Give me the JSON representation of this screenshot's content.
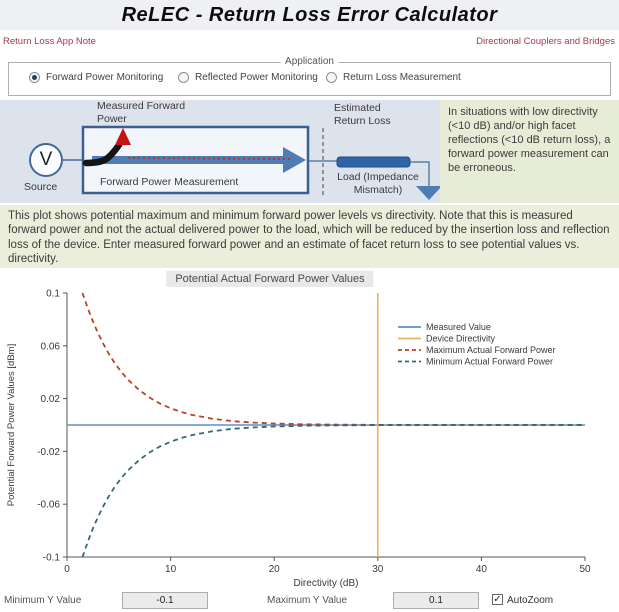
{
  "window": {
    "title": "ReLEC - Return Loss Error Calculator"
  },
  "links": {
    "app_note": "Return Loss App Note",
    "couplers": "Directional Couplers and Bridges"
  },
  "application": {
    "group_label": "Application",
    "options": [
      {
        "label": "Forward Power Monitoring",
        "selected": true
      },
      {
        "label": "Reflected Power Monitoring",
        "selected": false
      },
      {
        "label": "Return Loss Measurement",
        "selected": false
      }
    ]
  },
  "diagram": {
    "measured_forward_power_label": "Measured Forward Power",
    "source_symbol": "V",
    "source_label": "Source",
    "box_label": "Forward Power Measurement",
    "estimated_return_loss_label": "Estimated Return Loss",
    "load_label": "Load (Impedance Mismatch)",
    "note": "In situations with low directivity (<10 dB) and/or high facet reflections (<10 dB return loss), a forward power measurement can be erroneous.",
    "colors": {
      "schematic_blue": "#44679a",
      "arrow_blue": "#4d7db3",
      "load_blue": "#2f64a8",
      "coupled_black": "#141414",
      "measured_red": "#c41414"
    }
  },
  "description": "This plot shows potential maximum and minimum forward power levels vs directivity.  Note that this is measured forward power and not the actual delivered power to the load, which will be reduced by the insertion loss and reflection loss of the device.  Enter measured forward power and an estimate of facet return loss to see potential values vs. directivity.",
  "chart_data": {
    "type": "line",
    "title": "Potential Actual Forward Power Values",
    "xlabel": "Directivity (dB)",
    "ylabel": "Potential Forward Power Values [dBm]",
    "xlim": [
      0,
      50
    ],
    "ylim": [
      -0.1,
      0.1
    ],
    "x_ticks": [
      0,
      10,
      20,
      30,
      40,
      50
    ],
    "y_ticks": [
      0.1,
      0.06,
      0.02,
      -0.02,
      -0.06,
      -0.1
    ],
    "grid": false,
    "legend_position": "upper right",
    "series": [
      {
        "name": "Measured Value",
        "kind": "hline",
        "y": 0,
        "color": "#5f8fc7",
        "style": "solid"
      },
      {
        "name": "Device Directivity",
        "kind": "vline",
        "x": 30,
        "color": "#ecb45e",
        "style": "solid"
      },
      {
        "name": "Maximum Actual Forward Power",
        "kind": "curve",
        "color": "#bf4022",
        "style": "dashed",
        "x": [
          1.5,
          2,
          2.5,
          3,
          3.5,
          4,
          4.5,
          5,
          5.5,
          6,
          7,
          8,
          9,
          10,
          11,
          12,
          14,
          16,
          18,
          20,
          23,
          26,
          30,
          35,
          40,
          45,
          50
        ],
        "y": [
          0.1,
          0.0886,
          0.0784,
          0.0695,
          0.0615,
          0.0545,
          0.0482,
          0.0427,
          0.0378,
          0.0335,
          0.0263,
          0.0206,
          0.0161,
          0.0127,
          0.0099,
          0.0078,
          0.0048,
          0.0029,
          0.0018,
          0.0011,
          0.0005,
          0.0003,
          0.0001,
          0.0001,
          0,
          0,
          0
        ]
      },
      {
        "name": "Minimum Actual Forward Power",
        "kind": "curve",
        "color": "#2f6b78",
        "style": "dashed",
        "x": [
          1.5,
          2,
          2.5,
          3,
          3.5,
          4,
          4.5,
          5,
          5.5,
          6,
          7,
          8,
          9,
          10,
          11,
          12,
          14,
          16,
          18,
          20,
          23,
          26,
          30,
          35,
          40,
          45,
          50
        ],
        "y": [
          -0.1,
          -0.0886,
          -0.0784,
          -0.0695,
          -0.0615,
          -0.0545,
          -0.0482,
          -0.0427,
          -0.0378,
          -0.0335,
          -0.0263,
          -0.0206,
          -0.0161,
          -0.0127,
          -0.0099,
          -0.0078,
          -0.0048,
          -0.0029,
          -0.0018,
          -0.0011,
          -0.0005,
          -0.0003,
          -0.0001,
          -0.0001,
          0,
          0,
          0
        ]
      }
    ]
  },
  "controls": {
    "min_y_label": "Minimum Y Value",
    "min_y_value": "-0.1",
    "max_y_label": "Maximum Y Value",
    "max_y_value": "0.1",
    "autozoom_label": "AutoZoom",
    "autozoom_checked": true
  }
}
